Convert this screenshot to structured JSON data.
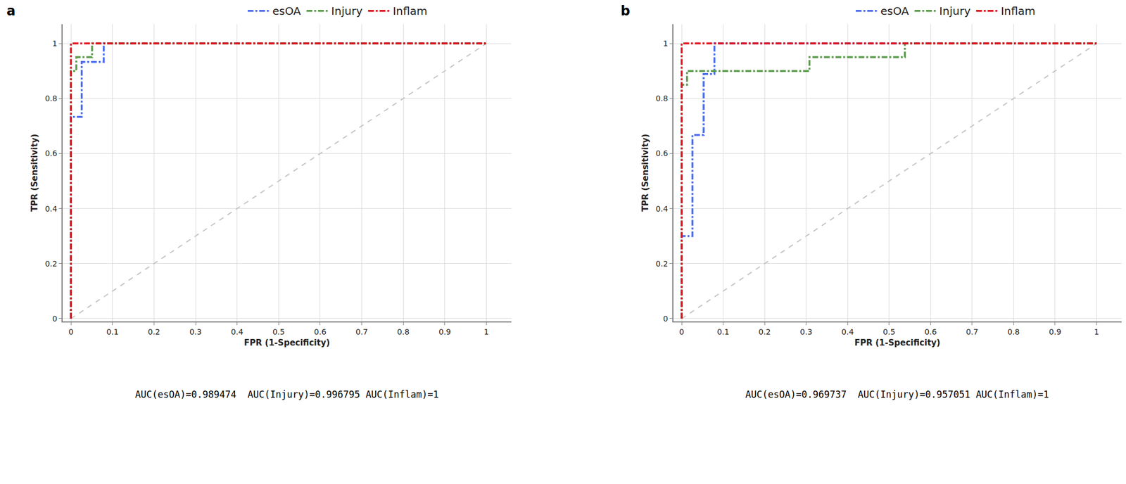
{
  "chart_data": [
    {
      "type": "line",
      "panel": "a",
      "x_label": "FPR (1-Specificity)",
      "y_label": "TPR (Sensitivity)",
      "caption": "AUC(esOA)=0.989474  AUC(Injury)=0.996795 AUC(Inflam)=1",
      "xlim": [
        -0.02,
        1.06
      ],
      "ylim": [
        -0.01,
        1.07
      ],
      "xticks": [
        0,
        0.1,
        0.2,
        0.3,
        0.4,
        0.5,
        0.6,
        0.7,
        0.8,
        0.9,
        1
      ],
      "yticks": [
        0,
        0.2,
        0.4,
        0.6,
        0.8,
        1
      ],
      "grid": true,
      "series": [
        {
          "name": "esOA",
          "color": "#4a6cf0",
          "line_style": "dashdot",
          "x": [
            0,
            0,
            0.026,
            0.026,
            0.079,
            0.079,
            1
          ],
          "values": [
            0,
            0.733,
            0.733,
            0.933,
            0.933,
            1,
            1
          ]
        },
        {
          "name": "Injury",
          "color": "#5a9a4a",
          "line_style": "dashdot",
          "x": [
            0,
            0,
            0.013,
            0.013,
            0.051,
            0.051,
            1
          ],
          "values": [
            0,
            0.9,
            0.9,
            0.95,
            0.95,
            1,
            1
          ]
        },
        {
          "name": "Inflam",
          "color": "#e0141e",
          "line_style": "dashdot",
          "x": [
            0,
            0,
            1
          ],
          "values": [
            0,
            1,
            1
          ]
        }
      ],
      "reference": {
        "x": [
          0,
          1
        ],
        "values": [
          0,
          1
        ],
        "color": "#c4c4c4",
        "line_style": "dash"
      }
    },
    {
      "type": "line",
      "panel": "b",
      "x_label": "FPR (1-Specificity)",
      "y_label": "TPR (Sensitivity)",
      "caption": "AUC(esOA)=0.969737  AUC(Injury)=0.957051 AUC(Inflam)=1",
      "xlim": [
        -0.02,
        1.06
      ],
      "ylim": [
        -0.01,
        1.07
      ],
      "xticks": [
        0,
        0.1,
        0.2,
        0.3,
        0.4,
        0.5,
        0.6,
        0.7,
        0.8,
        0.9,
        1
      ],
      "yticks": [
        0,
        0.2,
        0.4,
        0.6,
        0.8,
        1
      ],
      "grid": true,
      "series": [
        {
          "name": "esOA",
          "color": "#4a6cf0",
          "line_style": "dashdot",
          "x": [
            0,
            0,
            0.026,
            0.026,
            0.053,
            0.053,
            0.079,
            0.079,
            1
          ],
          "values": [
            0,
            0.3,
            0.3,
            0.667,
            0.667,
            0.889,
            0.889,
            1,
            1
          ]
        },
        {
          "name": "Injury",
          "color": "#5a9a4a",
          "line_style": "dashdot",
          "x": [
            0,
            0,
            0.013,
            0.013,
            0.308,
            0.308,
            0.538,
            0.538,
            1
          ],
          "values": [
            0,
            0.85,
            0.85,
            0.9,
            0.9,
            0.95,
            0.95,
            1,
            1
          ]
        },
        {
          "name": "Inflam",
          "color": "#e0141e",
          "line_style": "dashdot",
          "x": [
            0,
            0,
            1
          ],
          "values": [
            0,
            1,
            1
          ]
        }
      ],
      "reference": {
        "x": [
          0,
          1
        ],
        "values": [
          0,
          1
        ],
        "color": "#c4c4c4",
        "line_style": "dash"
      }
    }
  ]
}
